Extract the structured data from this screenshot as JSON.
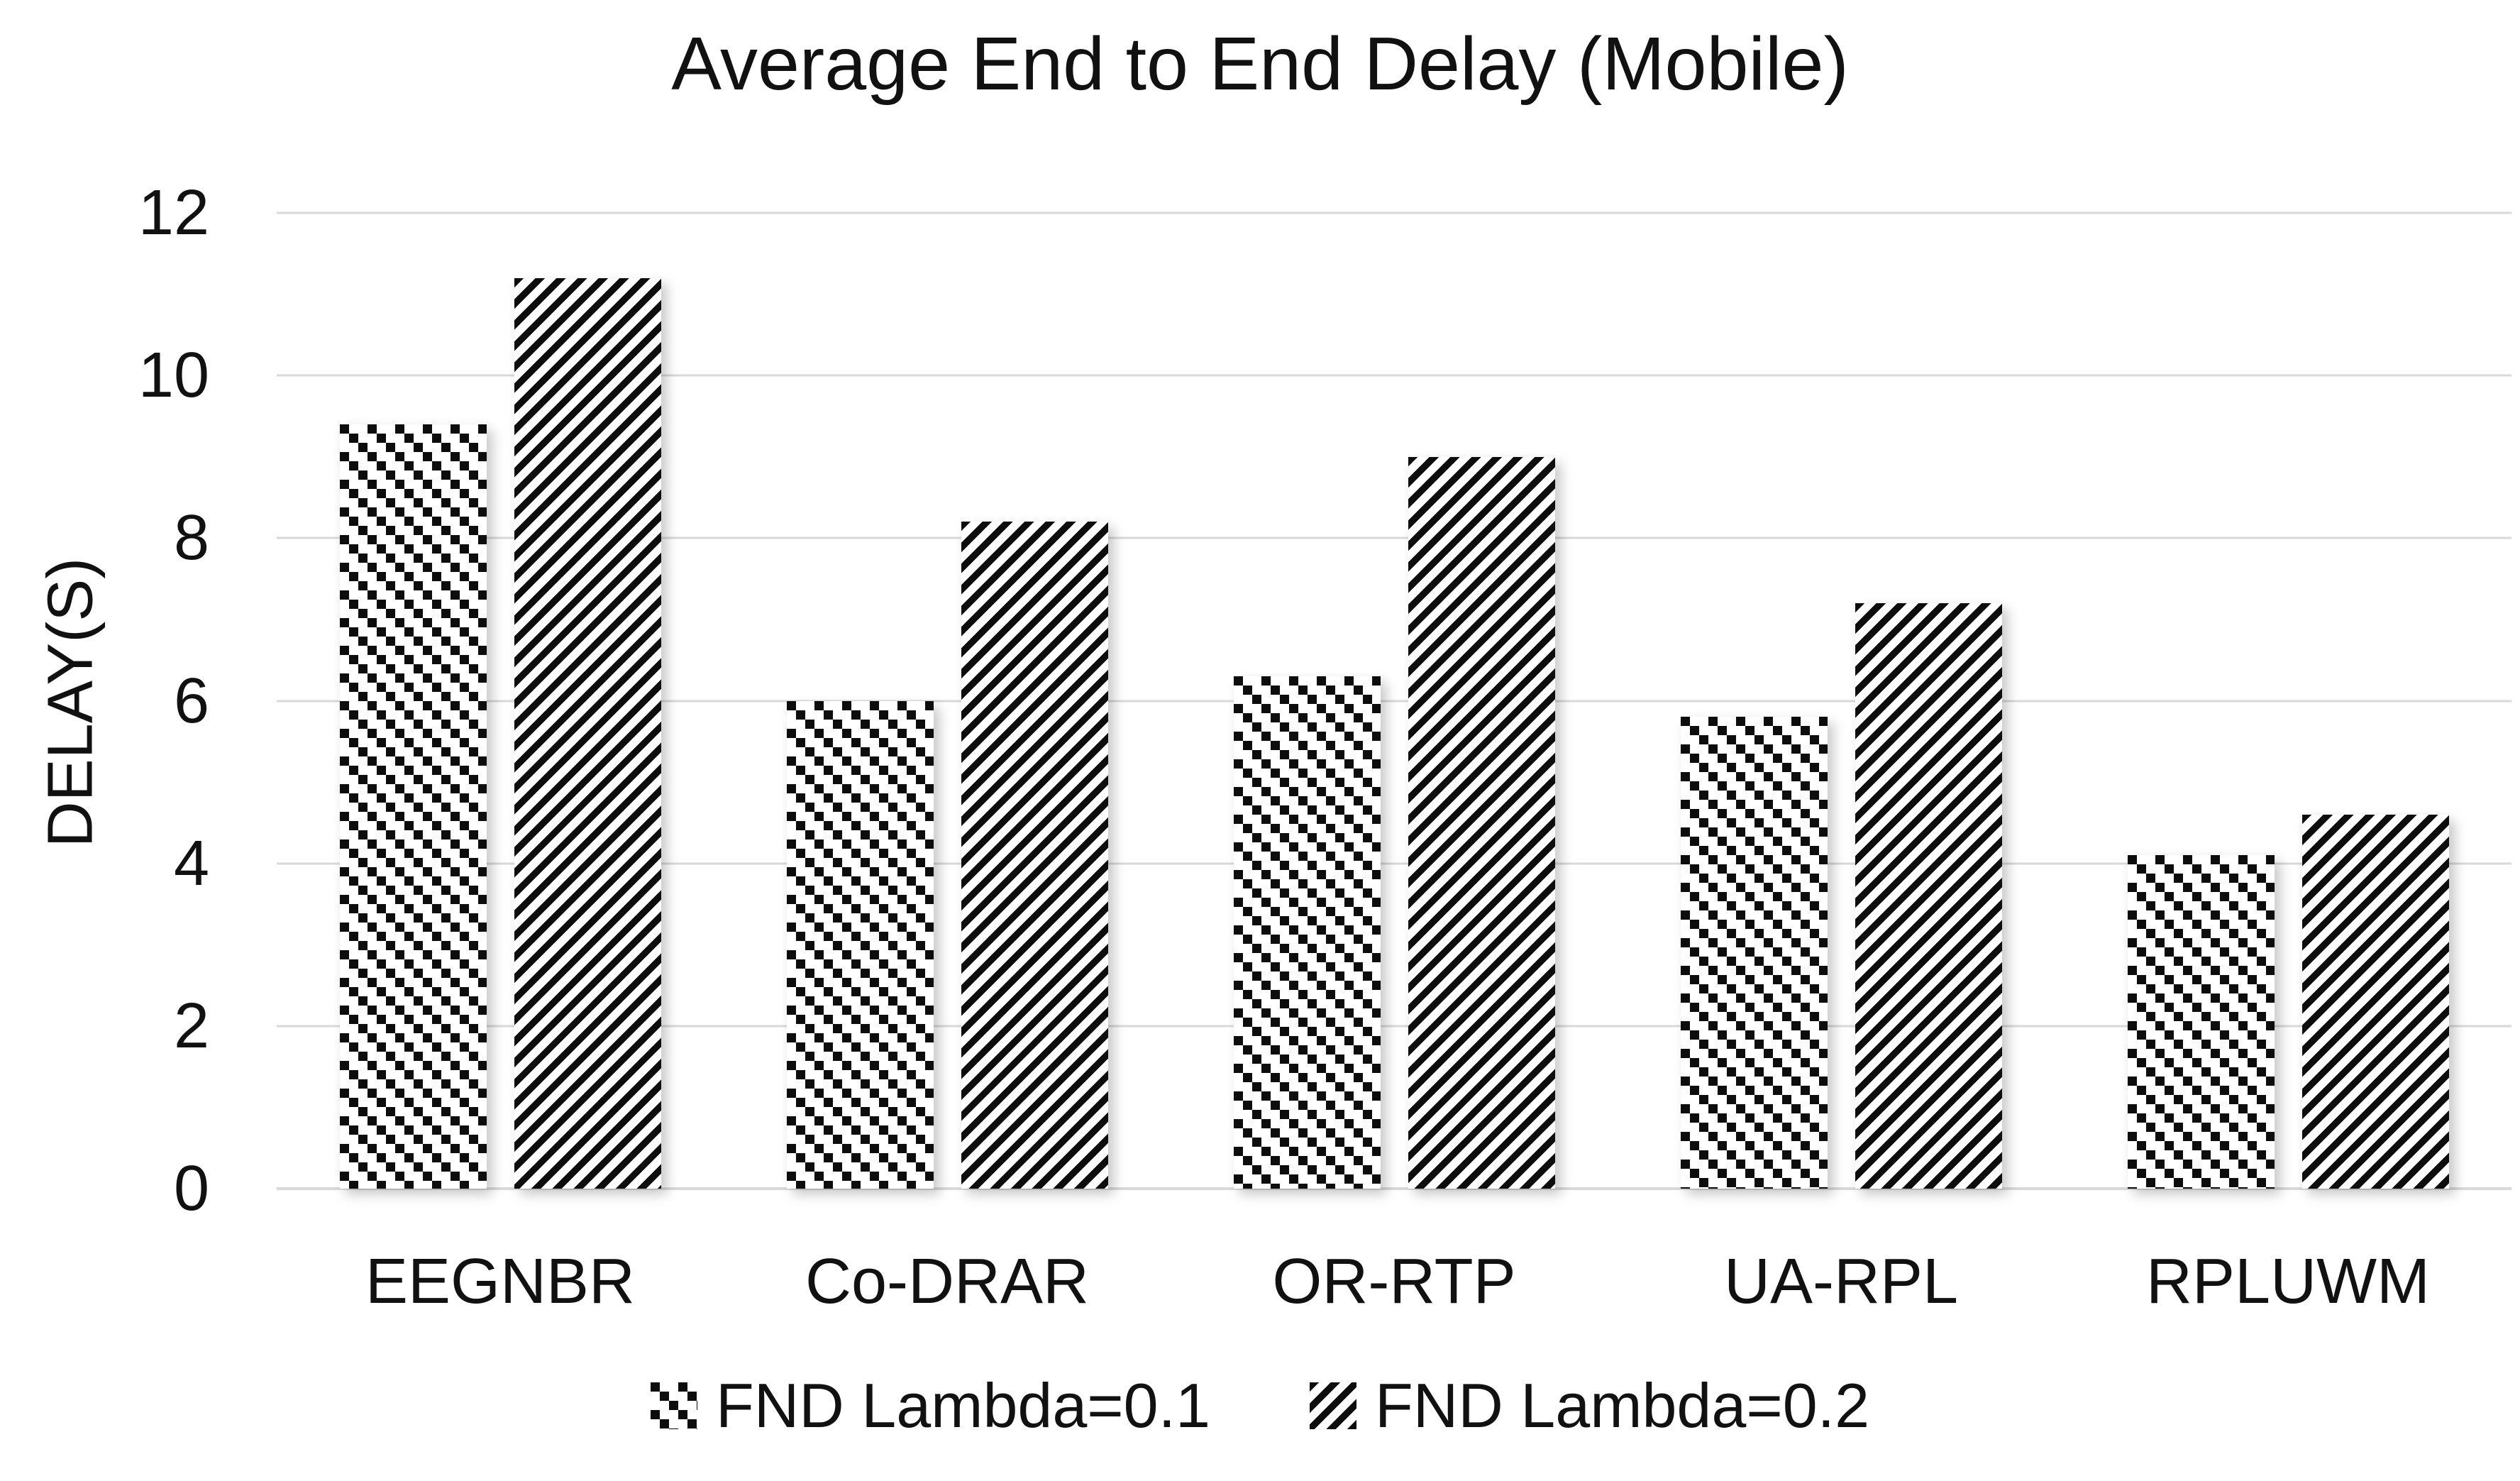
{
  "chart_data": {
    "type": "bar",
    "title": "Average End to End Delay (Mobile)",
    "xlabel": "",
    "ylabel": "DELAY(S)",
    "categories": [
      "EEGNBR",
      "Co-DRAR",
      "OR-RTP",
      "UA-RPL",
      "RPLUWM"
    ],
    "series": [
      {
        "name": "FND Lambda=0.1",
        "pattern": "checker-squares",
        "values": [
          9.4,
          6.0,
          6.3,
          5.8,
          4.1
        ]
      },
      {
        "name": "FND Lambda=0.2",
        "pattern": "diagonal-stripes",
        "values": [
          11.2,
          8.2,
          9.0,
          7.2,
          4.6
        ]
      }
    ],
    "ylim": [
      0,
      12
    ],
    "yticks": [
      0,
      2,
      4,
      6,
      8,
      10,
      12
    ],
    "grid": true,
    "legend_position": "bottom",
    "colors": {
      "bar_ink": "#0d0d0d",
      "bar_background": "#ffffff",
      "gridline": "#d9d9d9",
      "text": "#111111",
      "background": "#ffffff"
    }
  }
}
